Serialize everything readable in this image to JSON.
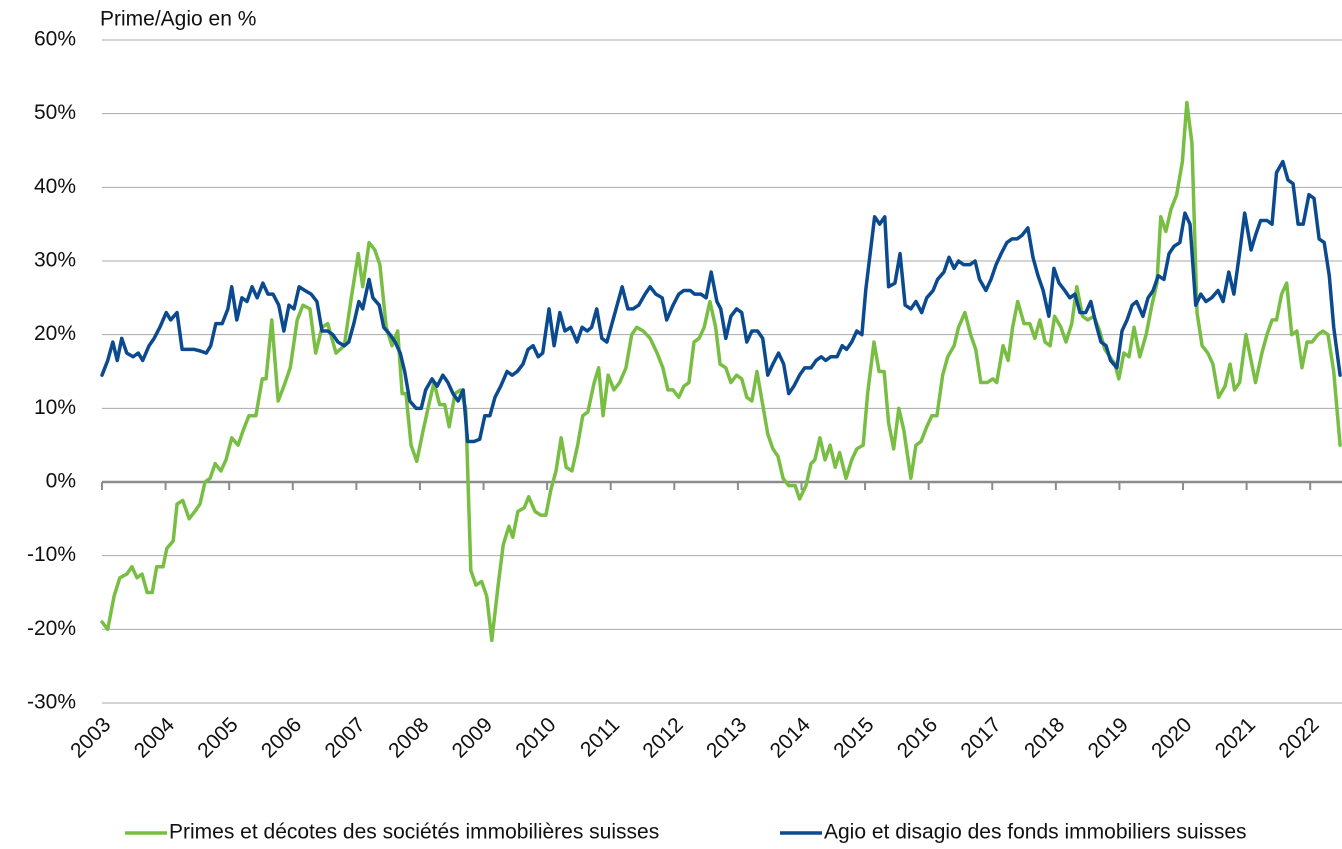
{
  "chart_data": {
    "type": "line",
    "y_label": "Prime/Agio en %",
    "xlim": [
      2003,
      2022.5
    ],
    "xticks": [
      2003,
      2004,
      2005,
      2006,
      2007,
      2008,
      2009,
      2010,
      2011,
      2012,
      2013,
      2014,
      2015,
      2016,
      2017,
      2018,
      2019,
      2020,
      2021,
      2022
    ],
    "ylim": [
      -30,
      60
    ],
    "yticks": [
      {
        "value": -30,
        "label": "-30%"
      },
      {
        "value": -20,
        "label": "-20%"
      },
      {
        "value": -10,
        "label": "-10%"
      },
      {
        "value": 0,
        "label": "0%"
      },
      {
        "value": 10,
        "label": "10%"
      },
      {
        "value": 20,
        "label": "20%"
      },
      {
        "value": 30,
        "label": "30%"
      },
      {
        "value": 40,
        "label": "40%"
      },
      {
        "value": 50,
        "label": "50%"
      },
      {
        "value": 60,
        "label": "60%"
      }
    ],
    "grid": true,
    "legend": "bottom",
    "series": [
      {
        "name": "Primes et décotes des sociétés immobilières suisses",
        "color": "#78be43",
        "x": [
          2003.0,
          2003.09,
          2003.19,
          2003.28,
          2003.39,
          2003.47,
          2003.55,
          2003.63,
          2003.71,
          2003.79,
          2003.86,
          2003.96,
          2004.02,
          2004.12,
          2004.18,
          2004.27,
          2004.37,
          2004.46,
          2004.54,
          2004.62,
          2004.7,
          2004.78,
          2004.87,
          2004.95,
          2005.04,
          2005.14,
          2005.22,
          2005.31,
          2005.42,
          2005.52,
          2005.58,
          2005.67,
          2005.77,
          2005.86,
          2005.96,
          2006.07,
          2006.16,
          2006.27,
          2006.36,
          2006.46,
          2006.55,
          2006.68,
          2006.81,
          2006.92,
          2007.03,
          2007.1,
          2007.2,
          2007.29,
          2007.37,
          2007.47,
          2007.56,
          2007.65,
          2007.72,
          2007.78,
          2007.86,
          2007.95,
          2008.05,
          2008.14,
          2008.22,
          2008.31,
          2008.39,
          2008.46,
          2008.55,
          2008.64,
          2008.72,
          2008.8,
          2008.88,
          2008.97,
          2009.05,
          2009.13,
          2009.23,
          2009.31,
          2009.4,
          2009.46,
          2009.54,
          2009.64,
          2009.71,
          2009.81,
          2009.9,
          2009.98,
          2010.06,
          2010.14,
          2010.22,
          2010.3,
          2010.39,
          2010.48,
          2010.56,
          2010.64,
          2010.74,
          2010.81,
          2010.88,
          2010.96,
          2011.05,
          2011.14,
          2011.24,
          2011.33,
          2011.41,
          2011.51,
          2011.62,
          2011.73,
          2011.82,
          2011.9,
          2011.98,
          2012.07,
          2012.15,
          2012.23,
          2012.31,
          2012.39,
          2012.47,
          2012.56,
          2012.65,
          2012.72,
          2012.81,
          2012.89,
          2012.98,
          2013.06,
          2013.14,
          2013.22,
          2013.3,
          2013.38,
          2013.47,
          2013.55,
          2013.63,
          2013.71,
          2013.8,
          2013.9,
          2013.97,
          2014.07,
          2014.15,
          2014.21,
          2014.29,
          2014.37,
          2014.45,
          2014.53,
          2014.6,
          2014.7,
          2014.79,
          2014.87,
          2014.97,
          2015.04,
          2015.14,
          2015.22,
          2015.3,
          2015.37,
          2015.45,
          2015.53,
          2015.61,
          2015.72,
          2015.8,
          2015.88,
          2015.97,
          2016.05,
          2016.13,
          2016.22,
          2016.3,
          2016.4,
          2016.47,
          2016.57,
          2016.66,
          2016.74,
          2016.82,
          2016.92,
          2017.01,
          2017.07,
          2017.17,
          2017.25,
          2017.32,
          2017.4,
          2017.5,
          2017.59,
          2017.67,
          2017.75,
          2017.83,
          2017.91,
          2017.98,
          2018.08,
          2018.16,
          2018.25,
          2018.33,
          2018.42,
          2018.5,
          2018.6,
          2018.69,
          2018.77,
          2018.85,
          2018.93,
          2018.99,
          2019.07,
          2019.15,
          2019.23,
          2019.32,
          2019.42,
          2019.51,
          2019.59,
          2019.65,
          2019.73,
          2019.81,
          2019.9,
          2019.99,
          2020.06,
          2020.14,
          2020.22,
          2020.3,
          2020.39,
          2020.47,
          2020.56,
          2020.66,
          2020.74,
          2020.81,
          2020.89,
          2020.99,
          2021.07,
          2021.14,
          2021.24,
          2021.32,
          2021.4,
          2021.47,
          2021.55,
          2021.63,
          2021.71,
          2021.79,
          2021.87,
          2021.95,
          2022.03,
          2022.12,
          2022.2,
          2022.28,
          2022.37,
          2022.47
        ],
        "values": [
          -19,
          -20,
          -15.5,
          -13,
          -12.5,
          -11.5,
          -13,
          -12.5,
          -15,
          -15,
          -11.5,
          -11.5,
          -9,
          -8,
          -3,
          -2.5,
          -5,
          -4,
          -3,
          0,
          0.5,
          2.5,
          1.5,
          3,
          6,
          5,
          7,
          9,
          9,
          14,
          14,
          22,
          11,
          13,
          15.5,
          22,
          24,
          23.5,
          17.5,
          21,
          21.5,
          17.5,
          18.5,
          25,
          31,
          26.5,
          32.5,
          31.5,
          29.5,
          21,
          18.5,
          20.5,
          12,
          12,
          5,
          2.8,
          7,
          10.5,
          13.5,
          10.5,
          10.5,
          7.5,
          12,
          12.5,
          10,
          -12,
          -14,
          -13.5,
          -15.5,
          -21.5,
          -14,
          -8.5,
          -6,
          -7.5,
          -4,
          -3.5,
          -2,
          -4,
          -4.5,
          -4.5,
          -1,
          1.5,
          6,
          2,
          1.5,
          5,
          9,
          9.5,
          13.5,
          15.5,
          9,
          14.5,
          12.5,
          13.5,
          15.5,
          20,
          21,
          20.5,
          19.5,
          17.5,
          15.5,
          12.5,
          12.5,
          11.5,
          13,
          13.5,
          19,
          19.5,
          21,
          24.5,
          21,
          16,
          15.5,
          13.5,
          14.5,
          14,
          11.5,
          11,
          15,
          11,
          6.5,
          4.5,
          3.5,
          0.5,
          -0.5,
          -0.5,
          -2.3,
          -0.5,
          2.5,
          3,
          6,
          3,
          5,
          2,
          4,
          0.5,
          3,
          4.5,
          5,
          12,
          19,
          15,
          15,
          8,
          4.5,
          10,
          7,
          0.5,
          5,
          5.5,
          7.5,
          9,
          9,
          14.5,
          17,
          18.5,
          21,
          23,
          20,
          18,
          13.5,
          13.5,
          14,
          13.5,
          18.5,
          16.5,
          21,
          24.5,
          21.5,
          21.5,
          19.5,
          22,
          19,
          18.5,
          22.5,
          21,
          19,
          21.5,
          26.5,
          22.5,
          22,
          22.5,
          20.5,
          18,
          17,
          16,
          14,
          17.5,
          17,
          21,
          17,
          20,
          24,
          27,
          36,
          34,
          37,
          39,
          43.5,
          51.5,
          46,
          23,
          18.5,
          17.5,
          16,
          11.5,
          13,
          16,
          12.5,
          13.5,
          20,
          16.5,
          13.5,
          17.5,
          20,
          22,
          22,
          25.5,
          27,
          20,
          20.5,
          15.5,
          19,
          19,
          20,
          20.5,
          20,
          15,
          5
        ]
      },
      {
        "name": "Agio et disagio des fonds immobiliers suisses",
        "color": "#0b4a8f",
        "x": [
          2003.0,
          2003.09,
          2003.17,
          2003.24,
          2003.31,
          2003.39,
          2003.49,
          2003.57,
          2003.64,
          2003.74,
          2003.82,
          2003.91,
          2004.01,
          2004.08,
          2004.18,
          2004.26,
          2004.35,
          2004.45,
          2004.54,
          2004.64,
          2004.71,
          2004.79,
          2004.89,
          2004.98,
          2005.04,
          2005.12,
          2005.2,
          2005.28,
          2005.36,
          2005.44,
          2005.53,
          2005.61,
          2005.69,
          2005.78,
          2005.86,
          2005.94,
          2006.02,
          2006.1,
          2006.19,
          2006.29,
          2006.38,
          2006.46,
          2006.55,
          2006.63,
          2006.71,
          2006.81,
          2006.88,
          2006.96,
          2007.04,
          2007.1,
          2007.2,
          2007.26,
          2007.36,
          2007.43,
          2007.53,
          2007.61,
          2007.69,
          2007.76,
          2007.84,
          2007.94,
          2008.02,
          2008.09,
          2008.19,
          2008.27,
          2008.36,
          2008.44,
          2008.52,
          2008.6,
          2008.68,
          2008.75,
          2008.85,
          2008.94,
          2009.02,
          2009.1,
          2009.18,
          2009.27,
          2009.37,
          2009.45,
          2009.53,
          2009.62,
          2009.7,
          2009.78,
          2009.86,
          2009.93,
          2010.03,
          2010.11,
          2010.2,
          2010.28,
          2010.37,
          2010.47,
          2010.55,
          2010.63,
          2010.7,
          2010.78,
          2010.86,
          2010.94,
          2011.02,
          2011.1,
          2011.18,
          2011.27,
          2011.35,
          2011.44,
          2011.54,
          2011.62,
          2011.71,
          2011.81,
          2011.88,
          2011.98,
          2012.07,
          2012.15,
          2012.25,
          2012.32,
          2012.42,
          2012.5,
          2012.58,
          2012.67,
          2012.73,
          2012.81,
          2012.89,
          2012.98,
          2013.06,
          2013.14,
          2013.22,
          2013.31,
          2013.39,
          2013.47,
          2013.55,
          2013.64,
          2013.72,
          2013.8,
          2013.88,
          2013.97,
          2014.05,
          2014.15,
          2014.23,
          2014.31,
          2014.38,
          2014.46,
          2014.56,
          2014.64,
          2014.71,
          2014.79,
          2014.87,
          2014.95,
          2015.01,
          2015.08,
          2015.15,
          2015.23,
          2015.31,
          2015.37,
          2015.47,
          2015.55,
          2015.63,
          2015.72,
          2015.8,
          2015.89,
          2015.97,
          2016.07,
          2016.14,
          2016.24,
          2016.32,
          2016.4,
          2016.47,
          2016.55,
          2016.65,
          2016.73,
          2016.8,
          2016.9,
          2016.98,
          2017.06,
          2017.14,
          2017.23,
          2017.31,
          2017.39,
          2017.47,
          2017.56,
          2017.64,
          2017.72,
          2017.8,
          2017.89,
          2017.97,
          2018.05,
          2018.14,
          2018.22,
          2018.3,
          2018.38,
          2018.47,
          2018.55,
          2018.63,
          2018.71,
          2018.79,
          2018.86,
          2018.96,
          2019.04,
          2019.12,
          2019.2,
          2019.27,
          2019.37,
          2019.45,
          2019.53,
          2019.61,
          2019.7,
          2019.78,
          2019.86,
          2019.95,
          2020.03,
          2020.11,
          2020.2,
          2020.28,
          2020.36,
          2020.45,
          2020.55,
          2020.63,
          2020.72,
          2020.8,
          2020.88,
          2020.97,
          2021.07,
          2021.14,
          2021.22,
          2021.32,
          2021.4,
          2021.47,
          2021.57,
          2021.65,
          2021.73,
          2021.81,
          2021.89,
          2021.98,
          2022.06,
          2022.14,
          2022.22,
          2022.3,
          2022.37,
          2022.47
        ],
        "values": [
          14.5,
          16.5,
          19,
          16.5,
          19.5,
          17.5,
          17,
          17.5,
          16.5,
          18.5,
          19.5,
          21,
          23,
          22,
          23,
          18,
          18,
          18,
          17.8,
          17.5,
          18.5,
          21.5,
          21.5,
          23.5,
          26.5,
          22,
          25,
          24.5,
          26.5,
          25,
          27,
          25.5,
          25.5,
          24,
          20.5,
          24,
          23.5,
          26.5,
          26,
          25.5,
          24.5,
          20.5,
          20.5,
          20,
          19,
          18.5,
          19,
          21.5,
          24.5,
          23.5,
          27.5,
          25,
          24,
          21,
          20,
          19,
          17.5,
          15,
          11,
          10,
          10,
          12.5,
          14,
          13,
          14.5,
          13.5,
          12,
          11,
          12.5,
          5.5,
          5.5,
          5.8,
          9,
          9,
          11.5,
          13,
          15,
          14.5,
          15,
          16,
          18,
          18.5,
          17,
          17.5,
          23.5,
          18.5,
          23,
          20.5,
          21,
          19,
          21,
          20.5,
          21,
          23.5,
          19.5,
          19,
          21.5,
          24,
          26.5,
          23.5,
          23.5,
          24,
          25.5,
          26.5,
          25.5,
          25,
          22,
          24,
          25.5,
          26,
          26,
          25.5,
          25.5,
          25,
          28.5,
          24.5,
          23.5,
          19.5,
          22.5,
          23.5,
          23,
          19,
          20.5,
          20.5,
          19.5,
          14.5,
          16,
          17.5,
          16,
          12,
          13,
          14.5,
          15.5,
          15.5,
          16.5,
          17,
          16.5,
          17,
          17,
          18.5,
          18,
          19,
          20.5,
          20,
          26,
          31,
          36,
          35,
          36,
          26.5,
          27,
          31,
          24,
          23.5,
          24.5,
          23,
          25,
          26,
          27.5,
          28.5,
          30.5,
          29,
          30,
          29.5,
          29.5,
          30,
          27.5,
          26,
          27.5,
          29.5,
          31,
          32.5,
          33,
          33,
          33.5,
          34.5,
          30.5,
          28,
          26,
          22.5,
          29,
          27,
          26,
          25,
          25.5,
          23,
          23,
          24.5,
          21.5,
          19,
          18.5,
          16.5,
          15.5,
          20.5,
          22,
          24,
          24.5,
          22.5,
          25,
          26,
          28,
          27.5,
          31,
          32,
          32.5,
          36.5,
          35,
          24,
          25.5,
          24.5,
          25,
          26,
          24.5,
          28.5,
          25.5,
          30.5,
          36.5,
          31.5,
          33.5,
          35.5,
          35.5,
          35,
          42,
          43.5,
          41,
          40.5,
          35,
          35,
          39,
          38.5,
          33,
          32.5,
          28,
          21,
          14.5
        ]
      }
    ]
  }
}
